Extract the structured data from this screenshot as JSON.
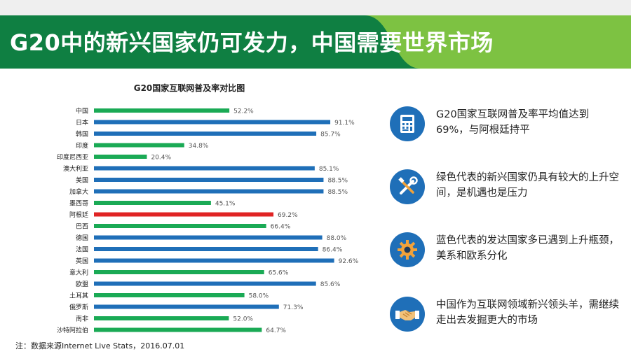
{
  "header": {
    "title": "G20中的新兴国家仍可发力，中国需要世界市场"
  },
  "colors": {
    "emerging": "#1aaa55",
    "developed": "#1f6fb8",
    "argentina": "#e02424",
    "banner_dark": "#0f7f42",
    "banner_light": "#7dc242",
    "icon_bg": "#1f6fb8"
  },
  "chart_data": {
    "type": "bar",
    "orientation": "horizontal",
    "title": "G20国家互联网普及率对比图",
    "categories": [
      "中国",
      "日本",
      "韩国",
      "印度",
      "印度尼西亚",
      "澳大利亚",
      "美国",
      "加拿大",
      "墨西哥",
      "阿根廷",
      "巴西",
      "德国",
      "法国",
      "英国",
      "意大利",
      "欧盟",
      "土耳其",
      "俄罗斯",
      "南非",
      "沙特阿拉伯"
    ],
    "values": [
      52.2,
      91.1,
      85.7,
      34.8,
      20.4,
      85.1,
      88.5,
      88.5,
      45.1,
      69.2,
      66.4,
      88.0,
      86.4,
      92.6,
      65.6,
      85.6,
      58.0,
      71.3,
      52.0,
      64.7
    ],
    "value_labels": [
      "52.2%",
      "91.1%",
      "85.7%",
      "34.8%",
      "20.4%",
      "85.1%",
      "88.5%",
      "88.5%",
      "45.1%",
      "69.2%",
      "66.4%",
      "88.0%",
      "86.4%",
      "92.6%",
      "65.6%",
      "85.6%",
      "58.0%",
      "71.3%",
      "52.0%",
      "64.7%"
    ],
    "groups": [
      "emerging",
      "developed",
      "developed",
      "emerging",
      "emerging",
      "developed",
      "developed",
      "developed",
      "emerging",
      "argentina",
      "emerging",
      "developed",
      "developed",
      "developed",
      "emerging",
      "developed",
      "emerging",
      "developed",
      "emerging",
      "emerging"
    ],
    "xlim": [
      0,
      100
    ],
    "grid": false,
    "legend": "none"
  },
  "footnote": "注：数据来源Internet Live Stats，2016.07.01",
  "points": [
    {
      "icon": "calculator-icon",
      "text": "G20国家互联网普及率平均值达到69%，与阿根廷持平"
    },
    {
      "icon": "tools-icon",
      "text": "绿色代表的新兴国家仍具有较大的上升空间，是机遇也是压力"
    },
    {
      "icon": "gear-icon",
      "text": "蓝色代表的发达国家多已遇到上升瓶颈，美系和欧系分化"
    },
    {
      "icon": "handshake-icon",
      "text": "中国作为互联网领域新兴领头羊，需继续走出去发掘更大的市场"
    }
  ]
}
